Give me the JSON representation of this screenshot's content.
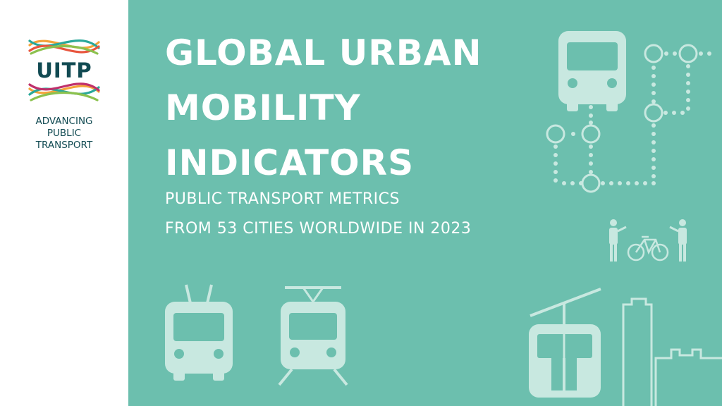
{
  "logo": {
    "wordmark": "UITP",
    "tagline": [
      "ADVANCING",
      "PUBLIC",
      "TRANSPORT"
    ],
    "ribbon_colors": [
      "#f4a43a",
      "#e8553e",
      "#c0306b",
      "#2aa89a",
      "#8cc14e"
    ]
  },
  "title_lines": [
    "GLOBAL URBAN",
    "MOBILITY",
    "INDICATORS"
  ],
  "subtitle_lines": [
    "PUBLIC TRANSPORT METRICS",
    "FROM 53 CITIES WORLDWIDE IN 2023"
  ],
  "colors": {
    "background": "#6cbfae",
    "text": "#ffffff",
    "icon": "#c8e8e0",
    "logo_text": "#114a52"
  },
  "icons": [
    "bus-icon",
    "network-map-icon",
    "pedestrians-bicycle-icon",
    "trolleybus-icon",
    "tram-icon",
    "speed-lines-icon",
    "cable-car-icon",
    "city-buildings-icon"
  ]
}
